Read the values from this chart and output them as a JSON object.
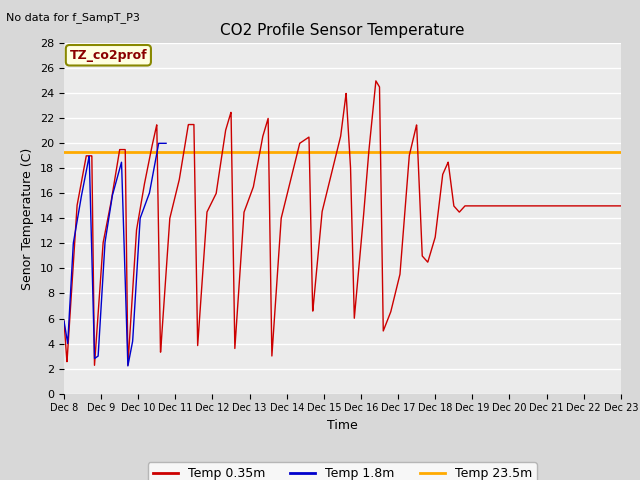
{
  "title": "CO2 Profile Sensor Temperature",
  "top_left_text": "No data for f_SampT_P3",
  "annotation_box_text": "TZ_co2prof",
  "xlabel": "Time",
  "ylabel": "Senor Temperature (C)",
  "ylim": [
    0,
    28
  ],
  "yticks": [
    0,
    2,
    4,
    6,
    8,
    10,
    12,
    14,
    16,
    18,
    20,
    22,
    24,
    26,
    28
  ],
  "fig_bg_color": "#d8d8d8",
  "plot_bg_color": "#ebebeb",
  "grid_color": "#ffffff",
  "red_color": "#cc0000",
  "blue_color": "#0000cc",
  "gold_color": "#ffaa00",
  "legend_labels": [
    "Temp 0.35m",
    "Temp 1.8m",
    "Temp 23.5m"
  ],
  "constant_temp": 19.3,
  "xticklabels": [
    "Dec 8",
    "Dec 9",
    "Dec 10",
    "Dec 11",
    "Dec 12",
    "Dec 13",
    "Dec 14",
    "Dec 15",
    "Dec 16",
    "Dec 17",
    "Dec 18",
    "Dec 19",
    "Dec 20",
    "Dec 21",
    "Dec 22",
    "Dec 23"
  ],
  "red_waypoints": [
    [
      0.0,
      5.8
    ],
    [
      0.08,
      2.5
    ],
    [
      0.35,
      15.0
    ],
    [
      0.6,
      19.0
    ],
    [
      0.75,
      19.0
    ],
    [
      0.82,
      2.2
    ],
    [
      1.05,
      12.0
    ],
    [
      1.25,
      15.0
    ],
    [
      1.5,
      19.5
    ],
    [
      1.65,
      19.5
    ],
    [
      1.72,
      2.2
    ],
    [
      1.95,
      13.0
    ],
    [
      2.15,
      16.5
    ],
    [
      2.35,
      19.5
    ],
    [
      2.5,
      21.5
    ],
    [
      2.6,
      3.2
    ],
    [
      2.85,
      14.0
    ],
    [
      3.1,
      17.0
    ],
    [
      3.35,
      21.5
    ],
    [
      3.5,
      21.5
    ],
    [
      3.6,
      3.8
    ],
    [
      3.85,
      14.5
    ],
    [
      4.1,
      16.0
    ],
    [
      4.35,
      21.0
    ],
    [
      4.5,
      22.5
    ],
    [
      4.6,
      3.5
    ],
    [
      4.85,
      14.5
    ],
    [
      5.1,
      16.5
    ],
    [
      5.35,
      20.5
    ],
    [
      5.5,
      22.0
    ],
    [
      5.6,
      3.0
    ],
    [
      5.85,
      14.0
    ],
    [
      6.1,
      17.0
    ],
    [
      6.35,
      20.0
    ],
    [
      6.6,
      20.5
    ],
    [
      6.7,
      6.5
    ],
    [
      6.95,
      14.5
    ],
    [
      7.2,
      17.5
    ],
    [
      7.45,
      20.5
    ],
    [
      7.6,
      24.0
    ],
    [
      7.72,
      18.0
    ],
    [
      7.82,
      6.0
    ],
    [
      8.05,
      13.5
    ],
    [
      8.2,
      19.0
    ],
    [
      8.4,
      25.0
    ],
    [
      8.5,
      24.5
    ],
    [
      8.6,
      5.0
    ],
    [
      8.8,
      6.5
    ],
    [
      9.05,
      9.5
    ],
    [
      9.3,
      19.0
    ],
    [
      9.5,
      21.5
    ],
    [
      9.65,
      11.0
    ],
    [
      9.8,
      10.5
    ],
    [
      10.0,
      12.5
    ],
    [
      10.2,
      17.5
    ],
    [
      10.35,
      18.5
    ],
    [
      10.5,
      15.0
    ],
    [
      10.65,
      14.5
    ],
    [
      10.8,
      15.0
    ],
    [
      11.5,
      15.0
    ],
    [
      12.0,
      15.0
    ],
    [
      15.0,
      15.0
    ]
  ],
  "blue_waypoints": [
    [
      0.0,
      5.8
    ],
    [
      0.1,
      4.0
    ],
    [
      0.25,
      12.0
    ],
    [
      0.45,
      15.5
    ],
    [
      0.68,
      19.0
    ],
    [
      0.82,
      2.8
    ],
    [
      0.92,
      3.0
    ],
    [
      1.1,
      12.0
    ],
    [
      1.3,
      15.8
    ],
    [
      1.55,
      18.5
    ],
    [
      1.72,
      2.2
    ],
    [
      1.85,
      4.2
    ],
    [
      2.05,
      14.0
    ],
    [
      2.3,
      16.0
    ],
    [
      2.55,
      20.0
    ],
    [
      2.75,
      20.0
    ]
  ]
}
